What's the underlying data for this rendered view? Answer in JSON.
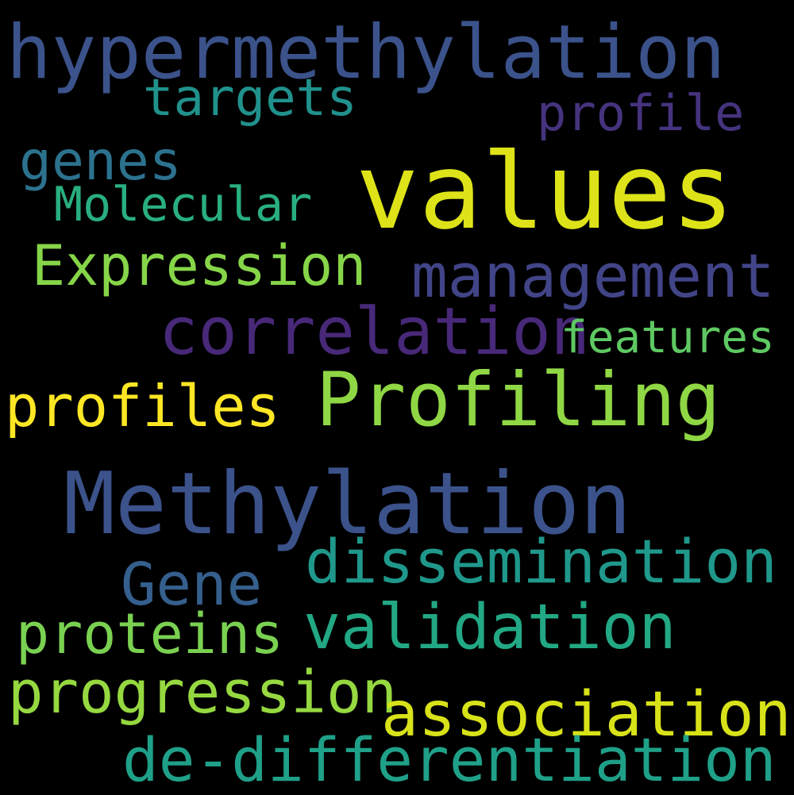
{
  "background": "#000000",
  "words": [
    {
      "text": "hypermethylation",
      "color": "#3b528b"
    },
    {
      "text": "targets",
      "color": "#21918c"
    },
    {
      "text": "profile",
      "color": "#46337e"
    },
    {
      "text": "genes",
      "color": "#2c728e"
    },
    {
      "text": "values",
      "color": "#dde318"
    },
    {
      "text": "Molecular",
      "color": "#29af7f"
    },
    {
      "text": "Expression",
      "color": "#86d549"
    },
    {
      "text": "management",
      "color": "#414487"
    },
    {
      "text": "correlation",
      "color": "#482878"
    },
    {
      "text": "features",
      "color": "#5ec962"
    },
    {
      "text": "profiles",
      "color": "#fde725"
    },
    {
      "text": "Profiling",
      "color": "#8fd744"
    },
    {
      "text": "Methylation",
      "color": "#3b528b"
    },
    {
      "text": "dissemination",
      "color": "#1f988b"
    },
    {
      "text": "Gene",
      "color": "#355f8d"
    },
    {
      "text": "proteins",
      "color": "#7ad151"
    },
    {
      "text": "validation",
      "color": "#22a884"
    },
    {
      "text": "progression",
      "color": "#95d840"
    },
    {
      "text": "association",
      "color": "#d8e219"
    },
    {
      "text": "de-differentiation",
      "color": "#1fa088"
    }
  ]
}
